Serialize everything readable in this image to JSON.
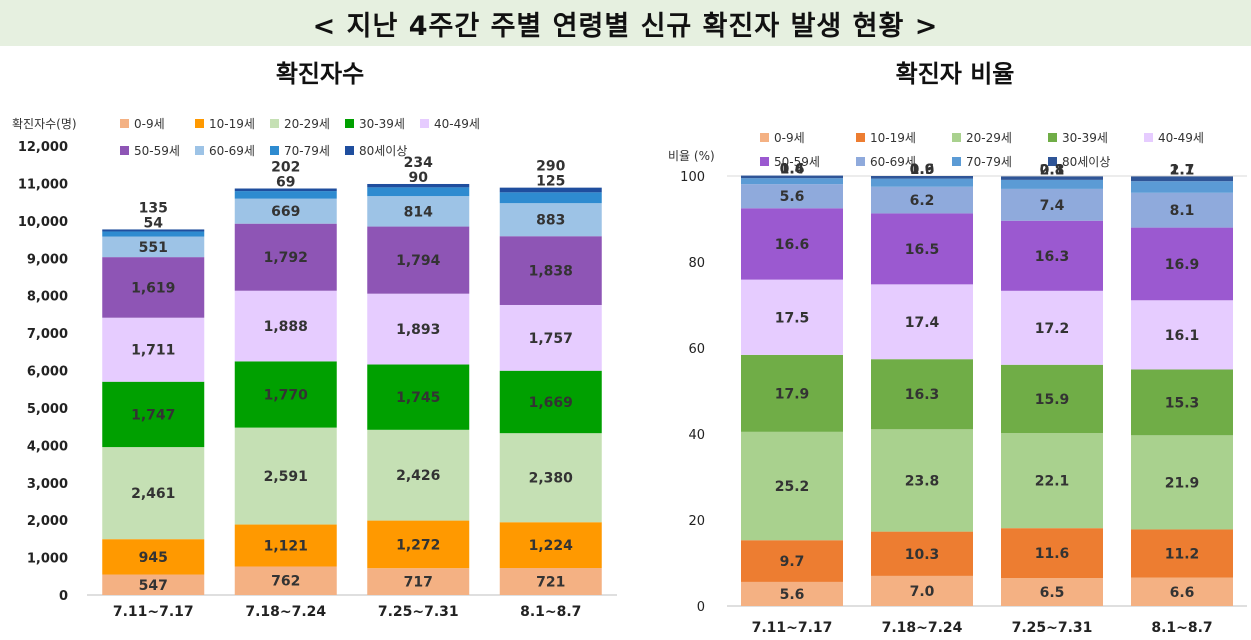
{
  "page_title": "< 지난 4주간 주별 연령별 신규 확진자 발생 현황 >",
  "chart_data": [
    {
      "type": "bar",
      "stacked": true,
      "title": "확진자수",
      "ylabel": "확진자수(명)",
      "xlabel": "",
      "ylim": [
        0,
        12000
      ],
      "yticks": [
        "0",
        "1,000",
        "2,000",
        "3,000",
        "4,000",
        "5,000",
        "6,000",
        "7,000",
        "8,000",
        "9,000",
        "10,000",
        "11,000",
        "12,000"
      ],
      "categories": [
        "7.11~7.17",
        "7.18~7.24",
        "7.25~7.31",
        "8.1~8.7"
      ],
      "series": [
        {
          "name": "0-9세",
          "color": "#f4b183",
          "values": [
            547,
            762,
            717,
            721
          ],
          "labels": [
            "547",
            "762",
            "717",
            "721"
          ]
        },
        {
          "name": "10-19세",
          "color": "#ff9900",
          "values": [
            945,
            1121,
            1272,
            1224
          ],
          "labels": [
            "945",
            "1,121",
            "1,272",
            "1,224"
          ]
        },
        {
          "name": "20-29세",
          "color": "#c5e0b4",
          "values": [
            2461,
            2591,
            2426,
            2380
          ],
          "labels": [
            "2,461",
            "2,591",
            "2,426",
            "2,380"
          ]
        },
        {
          "name": "30-39세",
          "color": "#00a000",
          "values": [
            1747,
            1770,
            1745,
            1669
          ],
          "labels": [
            "1,747",
            "1,770",
            "1,745",
            "1,669"
          ]
        },
        {
          "name": "40-49세",
          "color": "#e6ccff",
          "values": [
            1711,
            1888,
            1893,
            1757
          ],
          "labels": [
            "1,711",
            "1,888",
            "1,893",
            "1,757"
          ]
        },
        {
          "name": "50-59세",
          "color": "#8e55b5",
          "values": [
            1619,
            1792,
            1794,
            1838
          ],
          "labels": [
            "1,619",
            "1,792",
            "1,794",
            "1,838"
          ]
        },
        {
          "name": "60-69세",
          "color": "#9dc3e6",
          "values": [
            551,
            669,
            814,
            883
          ],
          "labels": [
            "551",
            "669",
            "814",
            "883"
          ]
        },
        {
          "name": "70-79세",
          "color": "#2e8bd0",
          "values": [
            135,
            202,
            234,
            290
          ],
          "labels": [
            "135",
            "202",
            "234",
            "290"
          ]
        },
        {
          "name": "80세이상",
          "color": "#1f4e9e",
          "values": [
            54,
            69,
            90,
            125
          ],
          "labels": [
            "54",
            "69",
            "90",
            "125"
          ]
        }
      ]
    },
    {
      "type": "bar",
      "stacked": true,
      "title": "확진자 비율",
      "ylabel": "비율 (%)",
      "xlabel": "",
      "ylim": [
        0,
        100
      ],
      "yticks": [
        "0",
        "20",
        "40",
        "60",
        "80",
        "100"
      ],
      "categories": [
        "7.11~7.17",
        "7.18~7.24",
        "7.25~7.31",
        "8.1~8.7"
      ],
      "series": [
        {
          "name": "0-9세",
          "color": "#f4b183",
          "values": [
            5.6,
            7.0,
            6.5,
            6.6
          ],
          "labels": [
            "5.6",
            "7.0",
            "6.5",
            "6.6"
          ]
        },
        {
          "name": "10-19세",
          "color": "#ed7d31",
          "values": [
            9.7,
            10.3,
            11.6,
            11.2
          ],
          "labels": [
            "9.7",
            "10.3",
            "11.6",
            "11.2"
          ]
        },
        {
          "name": "20-29세",
          "color": "#a9d18e",
          "values": [
            25.2,
            23.8,
            22.1,
            21.9
          ],
          "labels": [
            "25.2",
            "23.8",
            "22.1",
            "21.9"
          ]
        },
        {
          "name": "30-39세",
          "color": "#70ad47",
          "values": [
            17.9,
            16.3,
            15.9,
            15.3
          ],
          "labels": [
            "17.9",
            "16.3",
            "15.9",
            "15.3"
          ]
        },
        {
          "name": "40-49세",
          "color": "#e6ccff",
          "values": [
            17.5,
            17.4,
            17.2,
            16.1
          ],
          "labels": [
            "17.5",
            "17.4",
            "17.2",
            "16.1"
          ]
        },
        {
          "name": "50-59세",
          "color": "#9b59d0",
          "values": [
            16.6,
            16.5,
            16.3,
            16.9
          ],
          "labels": [
            "16.6",
            "16.5",
            "16.3",
            "16.9"
          ]
        },
        {
          "name": "60-69세",
          "color": "#8faadc",
          "values": [
            5.6,
            6.2,
            7.4,
            8.1
          ],
          "labels": [
            "5.6",
            "6.2",
            "7.4",
            "8.1"
          ]
        },
        {
          "name": "70-79세",
          "color": "#5b9bd5",
          "values": [
            1.4,
            1.9,
            2.1,
            2.7
          ],
          "labels": [
            "1.4",
            "1.9",
            "2.1",
            "2.7"
          ]
        },
        {
          "name": "80세이상",
          "color": "#2f5597",
          "values": [
            0.6,
            0.6,
            0.8,
            1.1
          ],
          "labels": [
            "0.6",
            "0.6",
            "0.8",
            "1.1"
          ]
        }
      ]
    }
  ]
}
